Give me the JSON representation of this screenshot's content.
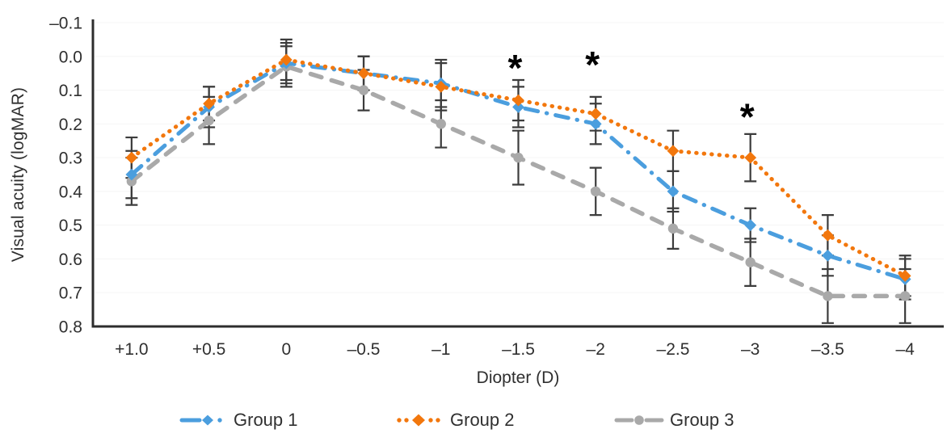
{
  "chart_data": {
    "type": "line",
    "title": "",
    "xlabel": "Diopter (D)",
    "ylabel": "Visual acuity (logMAR)",
    "categories": [
      "+1.0",
      "+0.5",
      "0",
      "–0.5",
      "–1",
      "–1.5",
      "–2",
      "–2.5",
      "–3",
      "–3.5",
      "–4"
    ],
    "y_axis": {
      "min": -0.1,
      "max": 0.8,
      "step": 0.1,
      "inverted_better_up": true,
      "tick_labels": [
        "–0.1",
        "0.0",
        "0.1",
        "0.2",
        "0.3",
        "0.4",
        "0.5",
        "0.6",
        "0.7",
        "0.8"
      ]
    },
    "series": [
      {
        "name": "Group 1",
        "color": "#4B9EDE",
        "line_style": "dash-dot",
        "marker": "diamond",
        "values": [
          0.35,
          0.15,
          0.02,
          0.05,
          0.08,
          0.15,
          0.2,
          0.4,
          0.5,
          0.59,
          0.66
        ],
        "errors": [
          0.07,
          0.06,
          0.06,
          0.05,
          0.07,
          0.06,
          0.06,
          0.06,
          0.05,
          0.06,
          0.06
        ]
      },
      {
        "name": "Group 2",
        "color": "#F2770D",
        "line_style": "dotted",
        "marker": "diamond",
        "values": [
          0.3,
          0.14,
          0.01,
          0.05,
          0.09,
          0.13,
          0.17,
          0.28,
          0.3,
          0.53,
          0.65
        ],
        "errors": [
          0.06,
          0.05,
          0.06,
          0.05,
          0.07,
          0.06,
          0.05,
          0.06,
          0.07,
          0.06,
          0.06
        ]
      },
      {
        "name": "Group 3",
        "color": "#A9A9A9",
        "line_style": "dashed",
        "marker": "circle",
        "values": [
          0.37,
          0.19,
          0.03,
          0.1,
          0.2,
          0.3,
          0.4,
          0.51,
          0.61,
          0.71,
          0.71
        ],
        "errors": [
          0.07,
          0.07,
          0.06,
          0.06,
          0.07,
          0.08,
          0.07,
          0.06,
          0.07,
          0.08,
          0.08
        ]
      }
    ],
    "annotations": [
      {
        "x": "–1.5",
        "y": 0.015,
        "symbol": "*"
      },
      {
        "x": "–2",
        "y": 0.005,
        "symbol": "*"
      },
      {
        "x": "–3",
        "y": 0.16,
        "symbol": "*"
      }
    ],
    "error_bar_color": "#3C3C3C",
    "axis_color": "#2D2D2D",
    "text_color": "#2F2F2F",
    "grid": "none",
    "legend_position": "bottom"
  }
}
